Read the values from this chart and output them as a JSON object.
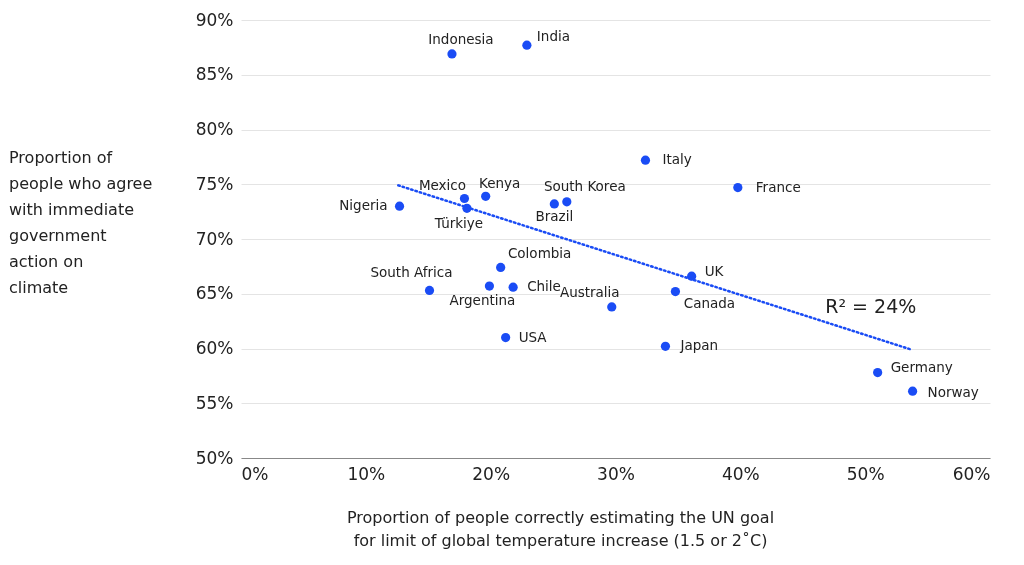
{
  "chart_data": {
    "type": "scatter",
    "xlabel": "Proportion of people correctly estimating the UN goal for limit of global temperature increase (1.5 or 2˚C)",
    "ylabel": "Proportion of people who agree with immediate government action on climate",
    "series": [
      {
        "color": "#1a4cf5",
        "x": [
          16.9,
          22.9,
          32.4,
          39.8,
          17.9,
          19.6,
          18.1,
          12.7,
          26.1,
          25.1,
          20.8,
          36.1,
          15.1,
          19.9,
          21.8,
          34.8,
          29.7,
          21.2,
          34.0,
          51.0,
          53.8
        ],
        "values": [
          86.9,
          87.7,
          77.2,
          74.7,
          73.7,
          73.9,
          72.8,
          73.0,
          73.4,
          73.2,
          67.4,
          66.6,
          65.3,
          65.7,
          65.6,
          65.2,
          63.8,
          61.0,
          60.2,
          57.8,
          56.1
        ],
        "marker": "circle"
      },
      {
        "type": "line",
        "color": "#1a4cf5",
        "x": [
          12.6,
          53.7
        ],
        "values": [
          74.9,
          59.9
        ],
        "line_style": "dotted"
      }
    ],
    "annotations": [
      {
        "text": "Indonesia",
        "x": 16.9,
        "y": 86.9
      },
      {
        "text": "India",
        "x": 22.9,
        "y": 87.7
      },
      {
        "text": "Italy",
        "x": 32.4,
        "y": 77.2
      },
      {
        "text": "France",
        "x": 39.8,
        "y": 74.7
      },
      {
        "text": "Mexico",
        "x": 17.9,
        "y": 73.7
      },
      {
        "text": "Kenya",
        "x": 19.6,
        "y": 73.9
      },
      {
        "text": "Türkiye",
        "x": 18.1,
        "y": 72.8
      },
      {
        "text": "Nigeria",
        "x": 12.7,
        "y": 73.0
      },
      {
        "text": "South Korea",
        "x": 26.1,
        "y": 73.4
      },
      {
        "text": "Brazil",
        "x": 25.1,
        "y": 73.2
      },
      {
        "text": "Colombia",
        "x": 20.8,
        "y": 67.4
      },
      {
        "text": "UK",
        "x": 36.1,
        "y": 66.6
      },
      {
        "text": "South Africa",
        "x": 15.1,
        "y": 65.3
      },
      {
        "text": "Argentina",
        "x": 19.9,
        "y": 65.7
      },
      {
        "text": "Chile",
        "x": 21.8,
        "y": 65.6
      },
      {
        "text": "Canada",
        "x": 34.8,
        "y": 65.2
      },
      {
        "text": "Australia",
        "x": 29.7,
        "y": 63.8
      },
      {
        "text": "USA",
        "x": 21.2,
        "y": 61.0
      },
      {
        "text": "Japan",
        "x": 34.0,
        "y": 60.2
      },
      {
        "text": "Germany",
        "x": 51.0,
        "y": 57.8
      },
      {
        "text": "Norway",
        "x": 53.8,
        "y": 56.1
      },
      "R² = 24%"
    ],
    "xlim": [
      0,
      60
    ],
    "xticks": [
      {
        "value": 0,
        "label": "0%"
      },
      {
        "value": 10,
        "label": "10%"
      },
      {
        "value": 20,
        "label": "20%"
      },
      {
        "value": 30,
        "label": "30%"
      },
      {
        "value": 40,
        "label": "40%"
      },
      {
        "value": 50,
        "label": "50%"
      },
      {
        "value": 60,
        "label": "60%"
      }
    ],
    "ylim": [
      50,
      90
    ],
    "yticks": [
      {
        "value": 50,
        "label": "50%"
      },
      {
        "value": 55,
        "label": "55%"
      },
      {
        "value": 60,
        "label": "60%"
      },
      {
        "value": 65,
        "label": "65%"
      },
      {
        "value": 70,
        "label": "70%"
      },
      {
        "value": 75,
        "label": "75%"
      },
      {
        "value": 80,
        "label": "80%"
      },
      {
        "value": 85,
        "label": "85%"
      },
      {
        "value": 90,
        "label": "90%"
      }
    ],
    "grid": "y"
  }
}
